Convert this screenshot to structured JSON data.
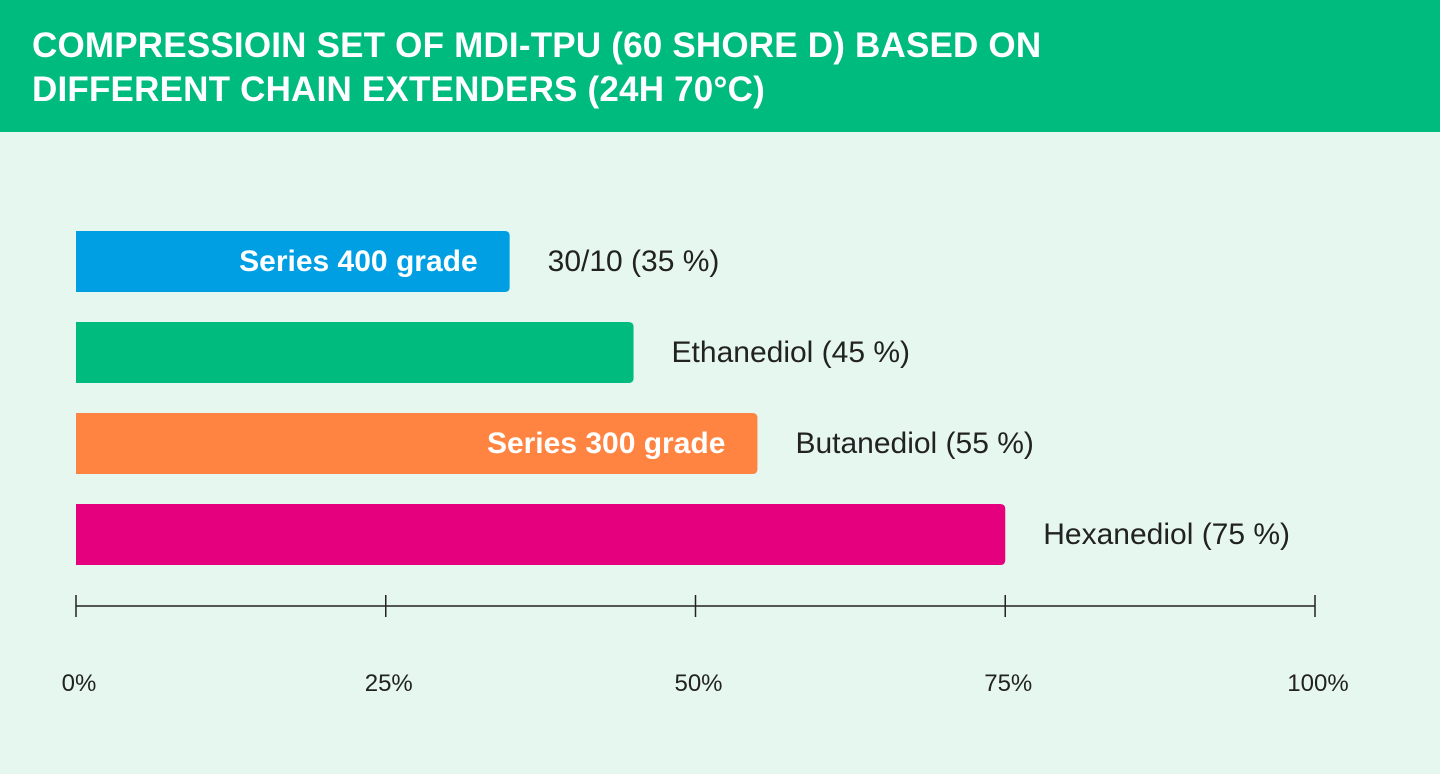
{
  "header": {
    "title_line1": "COMPRESSIOIN SET OF MDI-TPU (60 SHORE D) BASED ON",
    "title_line2": "DIFFERENT CHAIN EXTENDERS (24H 70°C)"
  },
  "colors": {
    "header_background": "#00bb7e",
    "page_background": "#e6f7f0",
    "bar_30_10": "#009fe3",
    "bar_ethanediol": "#00bb7e",
    "bar_butanediol": "#ff8442",
    "bar_hexanediol": "#e5007d"
  },
  "chart_data": {
    "type": "bar",
    "orientation": "horizontal",
    "title": "COMPRESSIOIN SET OF MDI-TPU (60 SHORE D) BASED ON DIFFERENT CHAIN EXTENDERS (24H 70°C)",
    "categories": [
      "30/10",
      "Ethanediol",
      "Butanediol",
      "Hexanediol"
    ],
    "values": [
      35,
      45,
      55,
      75
    ],
    "value_labels": [
      "30/10 (35 %)",
      "Ethanediol (45 %)",
      "Butanediol (55 %)",
      "Hexanediol (75 %)"
    ],
    "bar_inner_labels": [
      "Series 400 grade",
      "",
      "Series 300 grade",
      ""
    ],
    "bar_colors": [
      "#009fe3",
      "#00bb7e",
      "#ff8442",
      "#e5007d"
    ],
    "xlim": [
      0,
      100
    ],
    "x_ticks": [
      0,
      25,
      50,
      75,
      100
    ],
    "x_tick_labels": [
      "0%",
      "25%",
      "50%",
      "75%",
      "100%"
    ],
    "grid": false,
    "legend": "none"
  }
}
